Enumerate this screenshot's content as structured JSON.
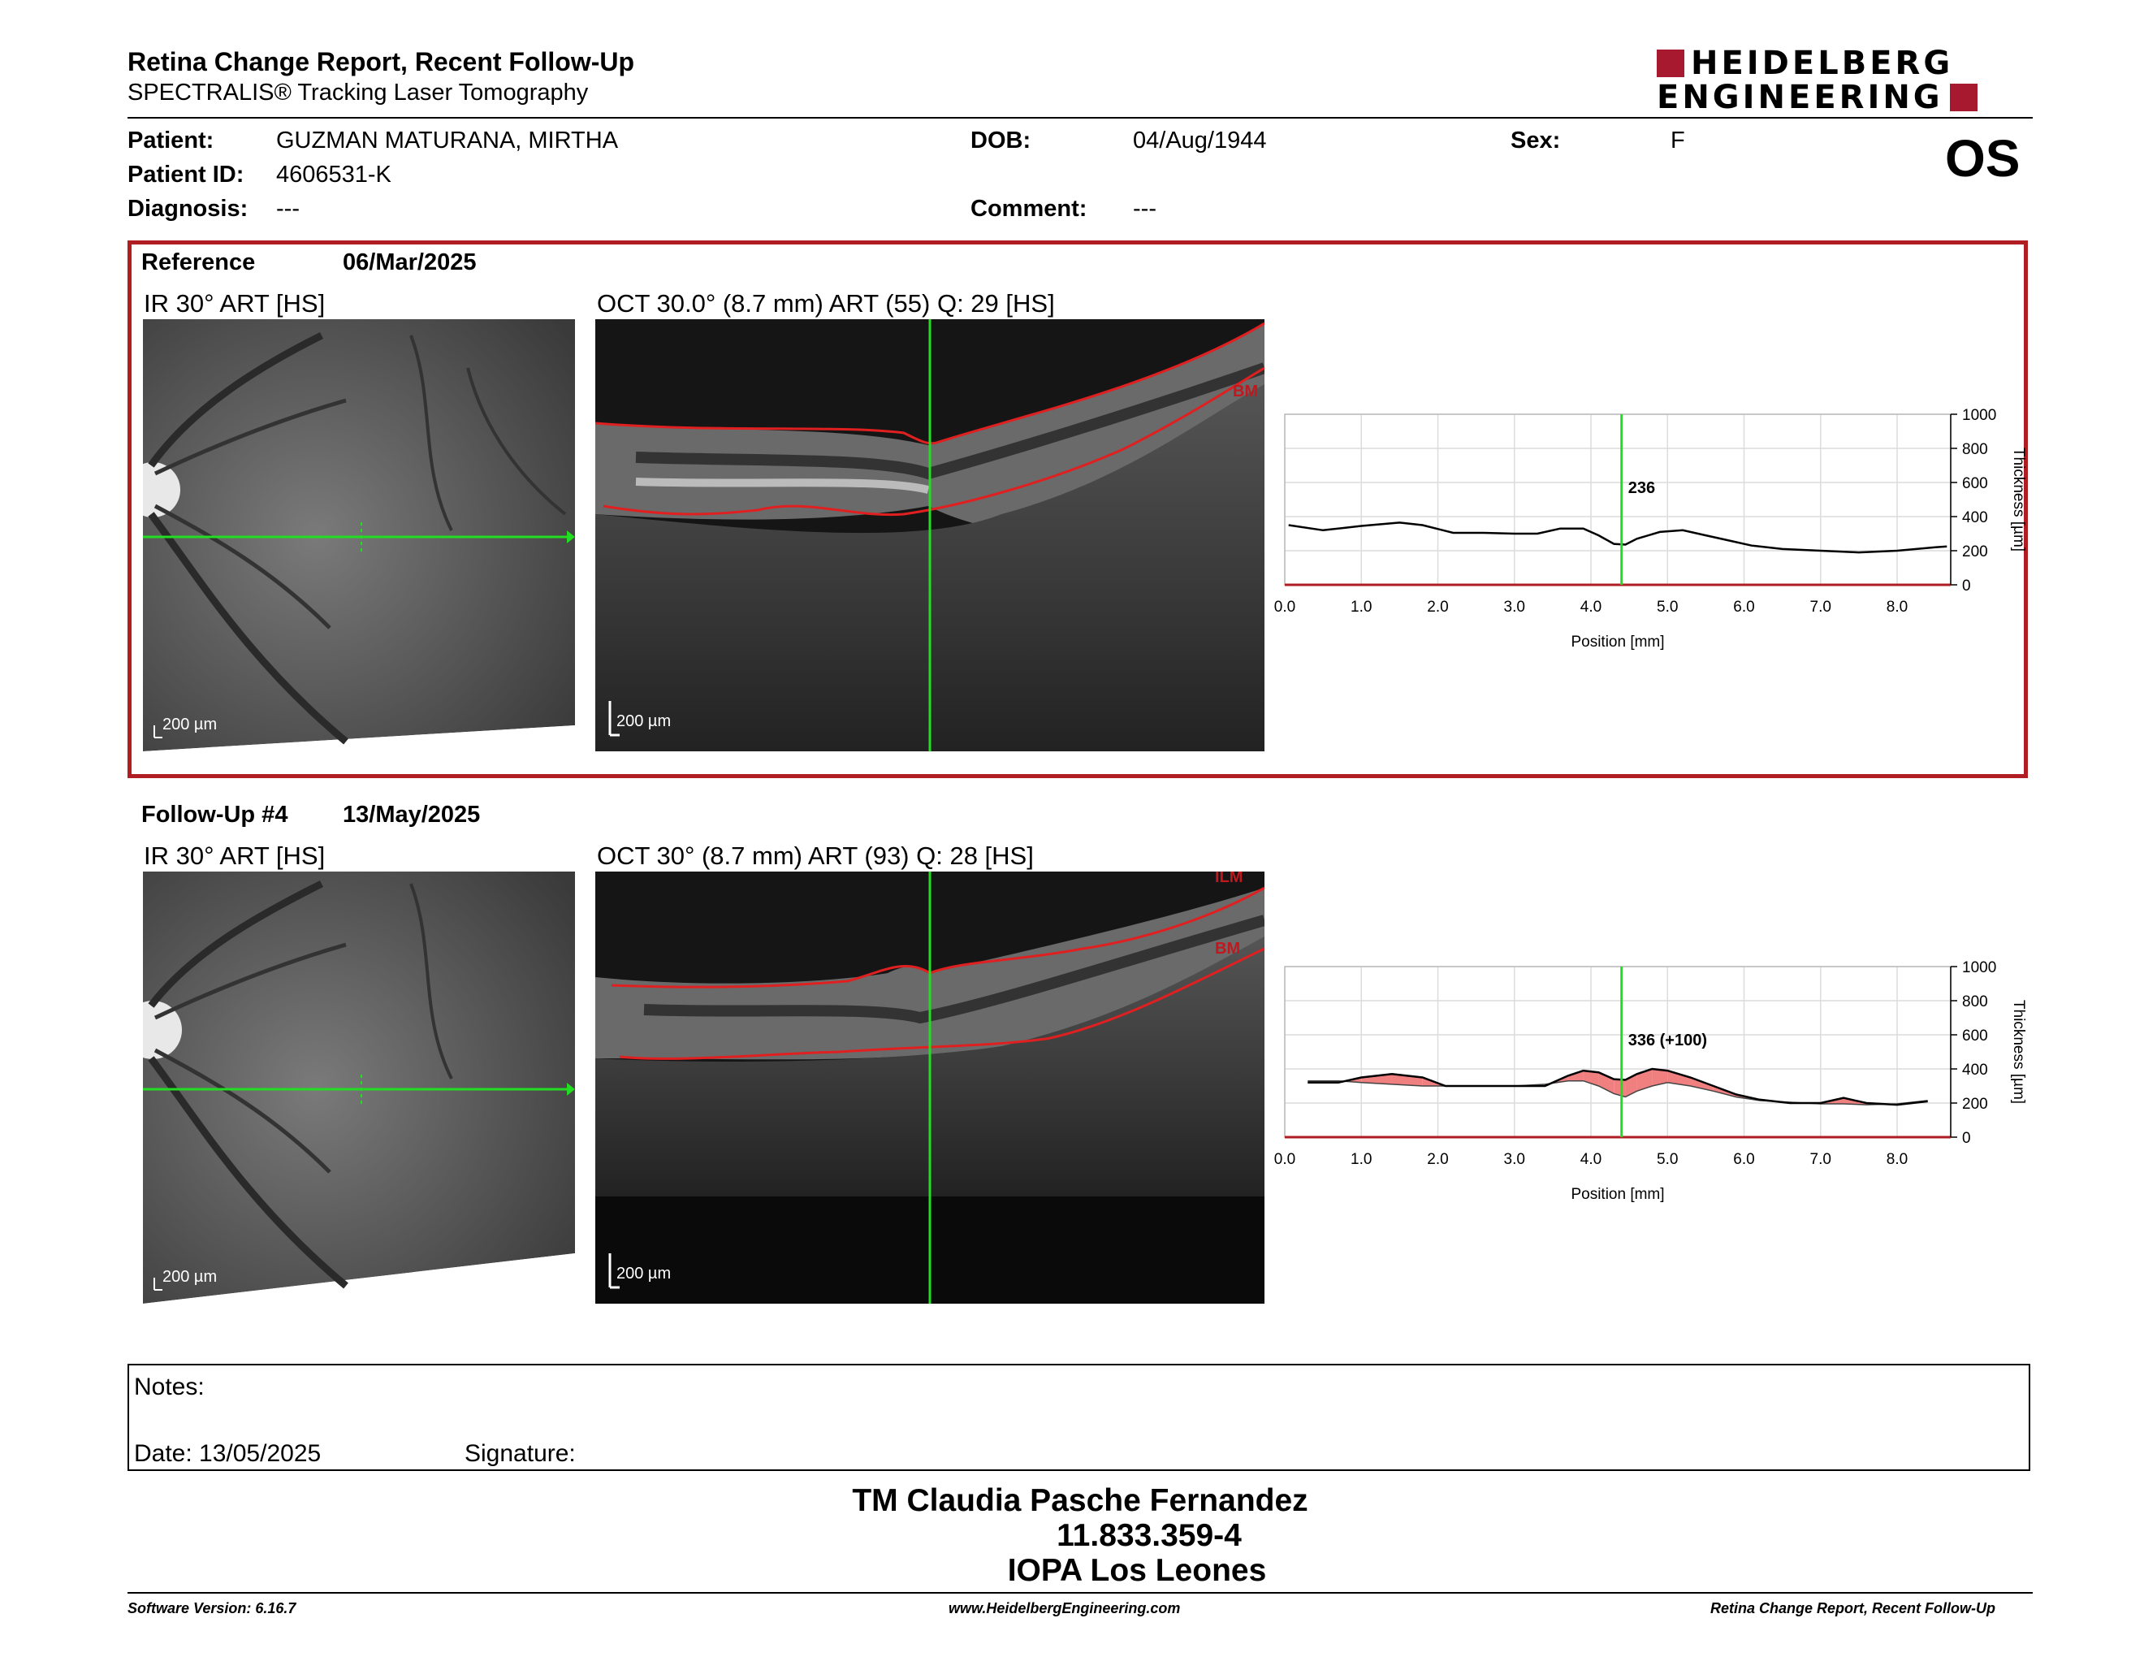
{
  "header": {
    "title": "Retina Change Report, Recent Follow-Up",
    "subtitle": "SPECTRALIS® Tracking Laser Tomography",
    "logo_line1": "HEIDELBERG",
    "logo_line2": "ENGINEERING"
  },
  "patient": {
    "patient_label": "Patient:",
    "patient_value": "GUZMAN MATURANA, MIRTHA",
    "dob_label": "DOB:",
    "dob_value": "04/Aug/1944",
    "sex_label": "Sex:",
    "sex_value": "F",
    "id_label": "Patient ID:",
    "id_value": "4606531-K",
    "diagnosis_label": "Diagnosis:",
    "diagnosis_value": "---",
    "comment_label": "Comment:",
    "comment_value": "---",
    "eye": "OS"
  },
  "reference": {
    "label": "Reference",
    "date": "06/Mar/2025",
    "ir_title": "IR 30° ART [HS]",
    "oct_title": "OCT 30.0° (8.7 mm) ART (55) Q: 29 [HS]",
    "scale_ir": "200 µm",
    "scale_oct": "200 µm",
    "bm_label": "BM"
  },
  "followup": {
    "label": "Follow-Up #4",
    "date": "13/May/2025",
    "ir_title": "IR 30° ART [HS]",
    "oct_title": "OCT 30° (8.7 mm) ART (93) Q: 28 [HS]",
    "scale_ir": "200 µm",
    "scale_oct": "200 µm",
    "bm_label": "BM",
    "ilm_label": "ILM"
  },
  "chart_data": [
    {
      "type": "line",
      "xlabel": "Position [mm]",
      "ylabel": "Thickness [µm]",
      "xlim": [
        0,
        8.7
      ],
      "ylim": [
        0,
        1000
      ],
      "xticks": [
        "0.0",
        "1.0",
        "2.0",
        "3.0",
        "4.0",
        "5.0",
        "6.0",
        "7.0",
        "8.0"
      ],
      "yticks": [
        "0",
        "200",
        "400",
        "600",
        "800",
        "1000"
      ],
      "cursor_x": 4.4,
      "cursor_label": "236",
      "series": [
        {
          "x": [
            0.05,
            0.5,
            1.0,
            1.5,
            1.8,
            2.2,
            2.6,
            3.0,
            3.3,
            3.6,
            3.9,
            4.1,
            4.3,
            4.45,
            4.6,
            4.9,
            5.2,
            5.5,
            5.8,
            6.1,
            6.5,
            7.0,
            7.5,
            8.0,
            8.5,
            8.65
          ],
          "values": [
            350,
            320,
            345,
            365,
            350,
            305,
            305,
            300,
            300,
            330,
            330,
            290,
            240,
            236,
            270,
            310,
            320,
            290,
            260,
            230,
            210,
            200,
            190,
            200,
            220,
            225
          ]
        }
      ]
    },
    {
      "type": "area",
      "xlabel": "Position [mm]",
      "ylabel": "Thickness [µm]",
      "xlim": [
        0,
        8.7
      ],
      "ylim": [
        0,
        1000
      ],
      "xticks": [
        "0.0",
        "1.0",
        "2.0",
        "3.0",
        "4.0",
        "5.0",
        "6.0",
        "7.0",
        "8.0"
      ],
      "yticks": [
        "0",
        "200",
        "400",
        "600",
        "800",
        "1000"
      ],
      "cursor_x": 4.4,
      "cursor_label": "336 (+100)",
      "series": [
        {
          "x": [
            0.3,
            0.7,
            1.0,
            1.4,
            1.8,
            2.1,
            2.6,
            3.0,
            3.4,
            3.7,
            3.9,
            4.1,
            4.3,
            4.45,
            4.6,
            4.8,
            5.0,
            5.3,
            5.6,
            5.9,
            6.2,
            6.6,
            7.0,
            7.3,
            7.6,
            8.0,
            8.4
          ],
          "values": [
            320,
            320,
            350,
            370,
            350,
            300,
            300,
            300,
            300,
            360,
            390,
            380,
            340,
            336,
            370,
            400,
            390,
            350,
            300,
            250,
            220,
            200,
            200,
            230,
            200,
            190,
            210
          ]
        },
        {
          "x": [
            0.3,
            0.7,
            1.0,
            1.4,
            1.8,
            2.1,
            2.6,
            3.0,
            3.4,
            3.7,
            3.9,
            4.1,
            4.3,
            4.45,
            4.6,
            4.8,
            5.0,
            5.3,
            5.6,
            5.9,
            6.2,
            6.6,
            7.0,
            7.3,
            7.6,
            8.0,
            8.4
          ],
          "values": [
            330,
            330,
            320,
            310,
            300,
            300,
            300,
            300,
            310,
            330,
            330,
            300,
            255,
            236,
            270,
            300,
            320,
            300,
            270,
            235,
            215,
            205,
            195,
            195,
            190,
            195,
            215
          ]
        }
      ]
    }
  ],
  "notes": {
    "notes_label": "Notes:",
    "date_label": "Date: 13/05/2025",
    "signature_label": "Signature:"
  },
  "signature_block": {
    "line1": "TM Claudia Pasche Fernandez",
    "line2": "11.833.359-4",
    "line3": "IOPA Los Leones"
  },
  "footer": {
    "left": "Software Version: 6.16.7",
    "center": "www.HeidelbergEngineering.com",
    "right": "Retina Change Report, Recent Follow-Up"
  },
  "colors": {
    "accent_red": "#b01e23",
    "cursor_green": "#22dd22",
    "increase_fill": "#f08080",
    "decrease_fill": "#90ee90"
  }
}
